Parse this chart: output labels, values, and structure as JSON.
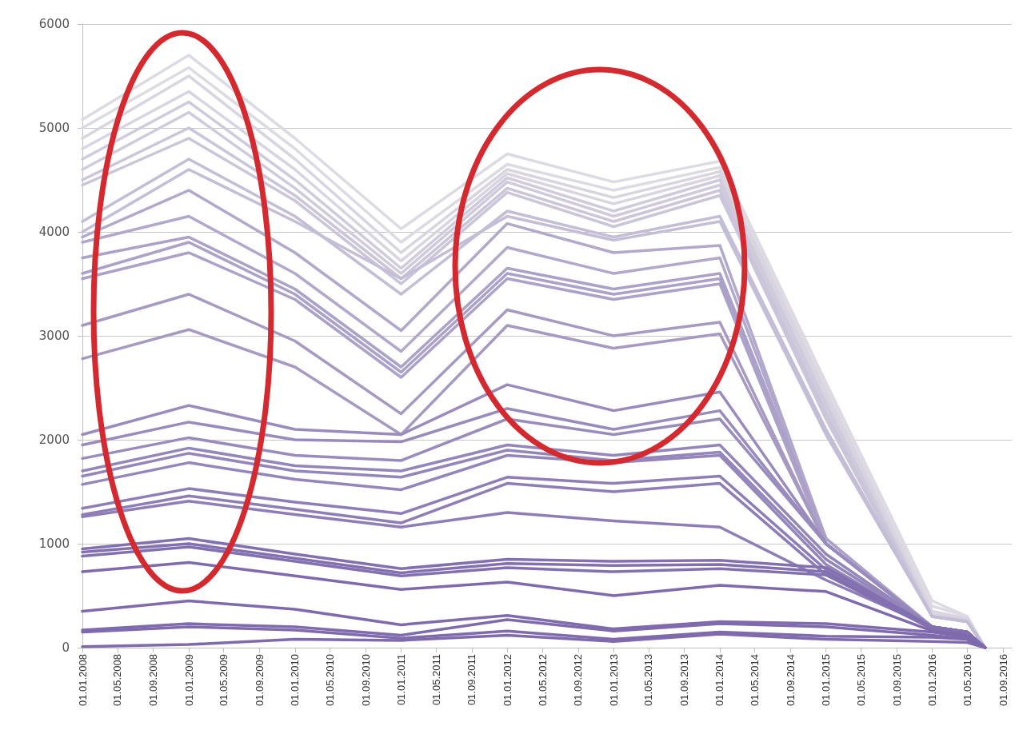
{
  "chart_data": {
    "type": "line",
    "x": [
      "2008-01-01",
      "2009-01-01",
      "2010-01-01",
      "2011-01-01",
      "2012-01-01",
      "2013-01-01",
      "2014-01-01",
      "2015-01-01",
      "2016-01-01",
      "2016-05-01",
      "2016-07-01"
    ],
    "xlim": [
      "2008-01-01",
      "2016-10-01"
    ],
    "xticks": [
      {
        "value": "2008-01-01",
        "label": "01.01.2008"
      },
      {
        "value": "2008-05-01",
        "label": "01.05.2008"
      },
      {
        "value": "2008-09-01",
        "label": "01.09.2008"
      },
      {
        "value": "2009-01-01",
        "label": "01.01.2009"
      },
      {
        "value": "2009-05-01",
        "label": "01.05.2009"
      },
      {
        "value": "2009-09-01",
        "label": "01.09.2009"
      },
      {
        "value": "2010-01-01",
        "label": "01.01.2010"
      },
      {
        "value": "2010-05-01",
        "label": "01.05.2010"
      },
      {
        "value": "2010-09-01",
        "label": "01.09.2010"
      },
      {
        "value": "2011-01-01",
        "label": "01.01.2011"
      },
      {
        "value": "2011-05-01",
        "label": "01.05.2011"
      },
      {
        "value": "2011-09-01",
        "label": "01.09.2011"
      },
      {
        "value": "2012-01-01",
        "label": "01.01.2012"
      },
      {
        "value": "2012-05-01",
        "label": "01.05.2012"
      },
      {
        "value": "2012-09-01",
        "label": "01.09.2012"
      },
      {
        "value": "2013-01-01",
        "label": "01.01.2013"
      },
      {
        "value": "2013-05-01",
        "label": "01.05.2013"
      },
      {
        "value": "2013-09-01",
        "label": "01.09.2013"
      },
      {
        "value": "2014-01-01",
        "label": "01.01.2014"
      },
      {
        "value": "2014-05-01",
        "label": "01.05.2014"
      },
      {
        "value": "2014-09-01",
        "label": "01.09.2014"
      },
      {
        "value": "2015-01-01",
        "label": "01.01.2015"
      },
      {
        "value": "2015-05-01",
        "label": "01.05.2015"
      },
      {
        "value": "2015-09-01",
        "label": "01.09.2015"
      },
      {
        "value": "2016-01-01",
        "label": "01.01.2016"
      },
      {
        "value": "2016-05-01",
        "label": "01.05.2016"
      },
      {
        "value": "2016-09-01",
        "label": "01.09.2016"
      }
    ],
    "ylim": [
      0,
      6000
    ],
    "yticks": [
      0,
      1000,
      2000,
      3000,
      4000,
      5000,
      6000
    ],
    "grid": "y",
    "marker": "none",
    "line_style": "solid",
    "series": [
      {
        "color": "#dddae3",
        "values": [
          5080,
          5700,
          4900,
          4030,
          4750,
          4480,
          4680,
          2550,
          450,
          300,
          0
        ]
      },
      {
        "color": "#dddae3",
        "values": [
          5000,
          5580,
          4800,
          3900,
          4650,
          4400,
          4620,
          2500,
          400,
          300,
          0
        ]
      },
      {
        "color": "#d8d4e0",
        "values": [
          4900,
          5500,
          4700,
          3800,
          4600,
          4330,
          4580,
          2450,
          350,
          280,
          0
        ]
      },
      {
        "color": "#d8d4e0",
        "values": [
          4800,
          5350,
          4600,
          3720,
          4560,
          4270,
          4540,
          2400,
          320,
          270,
          0
        ]
      },
      {
        "color": "#d0cbdc",
        "values": [
          4700,
          5250,
          4500,
          3650,
          4520,
          4200,
          4500,
          2350,
          300,
          260,
          0
        ]
      },
      {
        "color": "#d0cbdc",
        "values": [
          4600,
          5150,
          4420,
          3600,
          4480,
          4150,
          4450,
          2300,
          300,
          250,
          0
        ]
      },
      {
        "color": "#cbc5d9",
        "values": [
          4500,
          5000,
          4350,
          3550,
          4420,
          4100,
          4400,
          2250,
          300,
          250,
          0
        ]
      },
      {
        "color": "#cbc5d9",
        "values": [
          4450,
          4900,
          4300,
          3500,
          4380,
          4050,
          4350,
          2200,
          300,
          250,
          0
        ]
      },
      {
        "color": "#c4bdd6",
        "values": [
          4100,
          4700,
          4150,
          3400,
          4200,
          3950,
          4150,
          2100,
          300,
          250,
          0
        ]
      },
      {
        "color": "#c4bdd6",
        "values": [
          4000,
          4600,
          4100,
          3550,
          4150,
          3920,
          4100,
          2050,
          300,
          250,
          0
        ]
      },
      {
        "color": "#b2a8cc",
        "values": [
          3950,
          4400,
          3800,
          3050,
          4080,
          3800,
          3870,
          1050,
          200,
          150,
          0
        ]
      },
      {
        "color": "#b2a8cc",
        "values": [
          3900,
          4150,
          3600,
          2850,
          3850,
          3600,
          3750,
          1050,
          200,
          150,
          0
        ]
      },
      {
        "color": "#aca1c8",
        "values": [
          3750,
          3950,
          3450,
          2700,
          3650,
          3450,
          3600,
          1050,
          200,
          150,
          0
        ]
      },
      {
        "color": "#aca1c8",
        "values": [
          3600,
          3900,
          3400,
          2650,
          3600,
          3400,
          3550,
          1000,
          200,
          150,
          0
        ]
      },
      {
        "color": "#aca1c8",
        "values": [
          3550,
          3800,
          3350,
          2600,
          3550,
          3350,
          3500,
          1000,
          200,
          150,
          0
        ]
      },
      {
        "color": "#a699c2",
        "values": [
          3100,
          3400,
          2950,
          2250,
          3250,
          3000,
          3130,
          1000,
          200,
          150,
          0
        ]
      },
      {
        "color": "#a699c2",
        "values": [
          2780,
          3060,
          2700,
          2050,
          3100,
          2880,
          3020,
          1000,
          200,
          150,
          0
        ]
      },
      {
        "color": "#9a8bbd",
        "values": [
          2050,
          2330,
          2100,
          2050,
          2530,
          2280,
          2460,
          1000,
          200,
          150,
          0
        ]
      },
      {
        "color": "#9a8bbd",
        "values": [
          1950,
          2170,
          2000,
          1980,
          2300,
          2100,
          2280,
          1000,
          200,
          150,
          0
        ]
      },
      {
        "color": "#9a8bbd",
        "values": [
          1820,
          2020,
          1850,
          1800,
          2200,
          2050,
          2200,
          1000,
          200,
          150,
          0
        ]
      },
      {
        "color": "#9485ba",
        "values": [
          1700,
          1920,
          1750,
          1700,
          1950,
          1850,
          1950,
          900,
          200,
          150,
          0
        ]
      },
      {
        "color": "#9485ba",
        "values": [
          1650,
          1870,
          1700,
          1640,
          1900,
          1800,
          1880,
          850,
          200,
          150,
          0
        ]
      },
      {
        "color": "#9485ba",
        "values": [
          1570,
          1780,
          1620,
          1520,
          1850,
          1780,
          1850,
          800,
          200,
          150,
          0
        ]
      },
      {
        "color": "#8e7db7",
        "values": [
          1340,
          1530,
          1400,
          1290,
          1640,
          1580,
          1650,
          750,
          200,
          150,
          0
        ]
      },
      {
        "color": "#8e7db7",
        "values": [
          1280,
          1460,
          1330,
          1200,
          1580,
          1500,
          1580,
          700,
          200,
          150,
          0
        ]
      },
      {
        "color": "#8e7db7",
        "values": [
          1260,
          1410,
          1280,
          1160,
          1300,
          1220,
          1160,
          650,
          200,
          150,
          0
        ]
      },
      {
        "color": "#8370b0",
        "values": [
          950,
          1050,
          900,
          760,
          850,
          830,
          840,
          770,
          200,
          150,
          0
        ]
      },
      {
        "color": "#8370b0",
        "values": [
          920,
          1000,
          860,
          720,
          810,
          790,
          800,
          730,
          180,
          130,
          0
        ]
      },
      {
        "color": "#8370b0",
        "values": [
          880,
          970,
          830,
          690,
          770,
          730,
          760,
          700,
          180,
          130,
          0
        ]
      },
      {
        "color": "#7e6aad",
        "values": [
          730,
          820,
          690,
          560,
          630,
          500,
          600,
          540,
          160,
          120,
          0
        ]
      },
      {
        "color": "#7e6aad",
        "values": [
          350,
          450,
          370,
          220,
          310,
          180,
          250,
          230,
          150,
          100,
          0
        ]
      },
      {
        "color": "#7e6aad",
        "values": [
          170,
          230,
          200,
          120,
          270,
          160,
          230,
          200,
          120,
          80,
          0
        ]
      },
      {
        "color": "#7e6aad",
        "values": [
          150,
          200,
          170,
          90,
          160,
          80,
          150,
          110,
          100,
          80,
          0
        ]
      },
      {
        "color": "#7e6aad",
        "values": [
          10,
          30,
          80,
          70,
          120,
          60,
          130,
          80,
          60,
          50,
          0
        ]
      }
    ]
  }
}
